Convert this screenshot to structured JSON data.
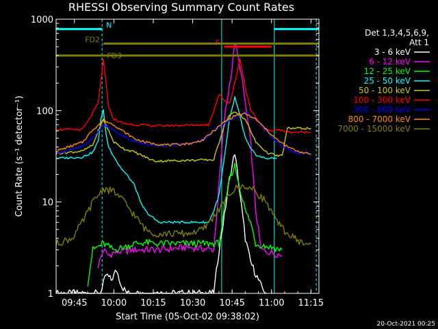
{
  "chart_data": {
    "type": "line",
    "title": "RHESSI Observing Summary Count Rates",
    "xlabel": "Start Time (05-Oct-02 09:38:02)",
    "ylabel": "Count Rate (s⁻¹ detector⁻¹)",
    "x_unit": "minutes since 09:38:02",
    "xlim": [
      0,
      100
    ],
    "ylim": [
      1,
      1000
    ],
    "yscale": "log",
    "grid": false,
    "x_ticks": [
      {
        "value": 6.97,
        "label": "09:45"
      },
      {
        "value": 21.97,
        "label": "10:00"
      },
      {
        "value": 36.97,
        "label": "10:15"
      },
      {
        "value": 51.97,
        "label": "10:30"
      },
      {
        "value": 66.97,
        "label": "10:45"
      },
      {
        "value": 81.97,
        "label": "11:00"
      },
      {
        "value": 96.97,
        "label": "11:15"
      }
    ],
    "y_ticks": [
      {
        "value": 1,
        "label": "1"
      },
      {
        "value": 10,
        "label": "10"
      },
      {
        "value": 100,
        "label": "100"
      },
      {
        "value": 1000,
        "label": "1000"
      }
    ],
    "legend": {
      "placement": "right",
      "header": [
        "Det 1,3,4,5,6,9,",
        "Att 1"
      ]
    },
    "series": [
      {
        "name": "3 - 6 keV",
        "color": "#ffffff",
        "points": [
          [
            0,
            1
          ],
          [
            17,
            1
          ],
          [
            19,
            1.6
          ],
          [
            21,
            1.4
          ],
          [
            23,
            1.8
          ],
          [
            25,
            1.2
          ],
          [
            27,
            1
          ],
          [
            60,
            1
          ],
          [
            62,
            3
          ],
          [
            64,
            7
          ],
          [
            66,
            18
          ],
          [
            68,
            35
          ],
          [
            70,
            12
          ],
          [
            72,
            4
          ],
          [
            74,
            2.2
          ],
          [
            78,
            1.2
          ],
          [
            80,
            1
          ]
        ]
      },
      {
        "name": "6 - 12 keV",
        "color": "#ff00ff",
        "points": [
          [
            16,
            2
          ],
          [
            18,
            3
          ],
          [
            20,
            2.6
          ],
          [
            22,
            2.8
          ],
          [
            30,
            3
          ],
          [
            40,
            3
          ],
          [
            50,
            3.2
          ],
          [
            60,
            3
          ],
          [
            64,
            80
          ],
          [
            67,
            300
          ],
          [
            68,
            560
          ],
          [
            70,
            300
          ],
          [
            72,
            120
          ],
          [
            74,
            45
          ],
          [
            76,
            8
          ],
          [
            78,
            3
          ],
          [
            86,
            2.6
          ]
        ]
      },
      {
        "name": "12 - 25 keV",
        "color": "#00ff00",
        "points": [
          [
            12,
            1.3
          ],
          [
            14,
            3
          ],
          [
            18,
            3.5
          ],
          [
            22,
            3
          ],
          [
            26,
            3.2
          ],
          [
            30,
            3.5
          ],
          [
            34,
            3.6
          ],
          [
            38,
            3.5
          ],
          [
            62,
            3.5
          ],
          [
            66,
            18
          ],
          [
            68,
            25
          ],
          [
            70,
            14
          ],
          [
            72,
            8
          ],
          [
            74,
            6
          ],
          [
            76,
            3.5
          ],
          [
            86,
            3
          ]
        ]
      },
      {
        "name": "25 - 50 keV",
        "color": "#00ffff",
        "points": [
          [
            0,
            30
          ],
          [
            10,
            31
          ],
          [
            14,
            35
          ],
          [
            16,
            46
          ],
          [
            17,
            80
          ],
          [
            18,
            100
          ],
          [
            19,
            55
          ],
          [
            20,
            40
          ],
          [
            24,
            25
          ],
          [
            28,
            18
          ],
          [
            30,
            15
          ],
          [
            32,
            10
          ],
          [
            34,
            8
          ],
          [
            36,
            7
          ],
          [
            39,
            6
          ],
          [
            58,
            6
          ],
          [
            60,
            8
          ],
          [
            62,
            12
          ],
          [
            64,
            30
          ],
          [
            66,
            80
          ],
          [
            68,
            140
          ],
          [
            70,
            85
          ],
          [
            72,
            50
          ],
          [
            74,
            38
          ],
          [
            76,
            33
          ],
          [
            78,
            31
          ],
          [
            80,
            30
          ],
          [
            84,
            30
          ]
        ]
      },
      {
        "name": "50 - 100 keV",
        "color": "#cccc00",
        "points": [
          [
            0,
            34
          ],
          [
            10,
            36
          ],
          [
            14,
            42
          ],
          [
            16,
            60
          ],
          [
            18,
            80
          ],
          [
            20,
            60
          ],
          [
            22,
            45
          ],
          [
            26,
            38
          ],
          [
            30,
            35
          ],
          [
            34,
            31
          ],
          [
            36,
            29
          ],
          [
            38,
            28
          ],
          [
            60,
            29
          ],
          [
            62,
            45
          ],
          [
            64,
            70
          ],
          [
            66,
            90
          ],
          [
            68,
            95
          ],
          [
            70,
            90
          ],
          [
            72,
            80
          ],
          [
            74,
            60
          ],
          [
            76,
            45
          ],
          [
            78,
            40
          ],
          [
            80,
            35
          ],
          [
            84,
            32
          ],
          [
            86,
            32
          ],
          [
            88,
            64
          ],
          [
            97,
            64
          ]
        ]
      },
      {
        "name": "100 - 300 keV",
        "color": "#ff0000",
        "points": [
          [
            0,
            62
          ],
          [
            10,
            62
          ],
          [
            12,
            75
          ],
          [
            16,
            120
          ],
          [
            18,
            360
          ],
          [
            20,
            110
          ],
          [
            22,
            80
          ],
          [
            26,
            72
          ],
          [
            30,
            70
          ],
          [
            34,
            69
          ],
          [
            38,
            68
          ],
          [
            58,
            70
          ],
          [
            60,
            100
          ],
          [
            62,
            150
          ],
          [
            64,
            130
          ],
          [
            66,
            120
          ],
          [
            68,
            200
          ],
          [
            70,
            370
          ],
          [
            72,
            180
          ],
          [
            74,
            100
          ],
          [
            78,
            70
          ],
          [
            80,
            60
          ],
          [
            84,
            62
          ],
          [
            86,
            60
          ],
          [
            88,
            58
          ],
          [
            97,
            58
          ]
        ]
      },
      {
        "name": "300 - 800 keV",
        "color": "#0000ff",
        "points": [
          [
            0,
            34
          ],
          [
            10,
            40
          ],
          [
            14,
            50
          ],
          [
            18,
            70
          ],
          [
            20,
            66
          ],
          [
            24,
            55
          ],
          [
            28,
            48
          ],
          [
            32,
            44
          ],
          [
            36,
            42
          ],
          [
            44,
            42
          ],
          [
            52,
            44
          ],
          [
            56,
            48
          ],
          [
            60,
            60
          ],
          [
            64,
            72
          ],
          [
            68,
            85
          ],
          [
            72,
            95
          ],
          [
            76,
            80
          ],
          [
            80,
            60
          ],
          [
            84,
            45
          ],
          [
            88,
            38
          ],
          [
            92,
            34
          ],
          [
            97,
            34
          ]
        ]
      },
      {
        "name": "800 - 7000 keV",
        "color": "#ff8c00",
        "points": [
          [
            0,
            36
          ],
          [
            10,
            45
          ],
          [
            14,
            62
          ],
          [
            18,
            78
          ],
          [
            22,
            70
          ],
          [
            26,
            58
          ],
          [
            30,
            49
          ],
          [
            34,
            45
          ],
          [
            38,
            43
          ],
          [
            44,
            42
          ],
          [
            52,
            44
          ],
          [
            56,
            48
          ],
          [
            60,
            60
          ],
          [
            64,
            75
          ],
          [
            68,
            88
          ],
          [
            72,
            92
          ],
          [
            76,
            80
          ],
          [
            80,
            62
          ],
          [
            84,
            48
          ],
          [
            88,
            40
          ],
          [
            92,
            36
          ],
          [
            97,
            33
          ]
        ]
      },
      {
        "name": "7000 - 15000 keV",
        "color": "#808000",
        "points": [
          [
            0,
            3.5
          ],
          [
            6,
            4
          ],
          [
            10,
            6
          ],
          [
            14,
            10
          ],
          [
            18,
            14
          ],
          [
            22,
            13
          ],
          [
            26,
            10
          ],
          [
            30,
            7
          ],
          [
            34,
            5
          ],
          [
            38,
            4.5
          ],
          [
            44,
            4.5
          ],
          [
            50,
            4.5
          ],
          [
            56,
            5
          ],
          [
            60,
            7
          ],
          [
            64,
            10
          ],
          [
            68,
            14
          ],
          [
            72,
            15
          ],
          [
            76,
            13
          ],
          [
            80,
            10
          ],
          [
            84,
            6
          ],
          [
            88,
            4.5
          ],
          [
            94,
            3.5
          ],
          [
            97,
            3.5
          ]
        ]
      }
    ],
    "state_bars": [
      {
        "label": "N",
        "color": "#00ffff",
        "y": 780,
        "segments": [
          [
            0,
            17.5
          ],
          [
            83,
            100
          ]
        ]
      },
      {
        "label": "F",
        "color": "#ff0000",
        "y": 500,
        "segments": [
          [
            64,
            82
          ]
        ]
      },
      {
        "label": "FD2",
        "color": "#808000",
        "y": 540,
        "segments": [
          [
            18,
            100
          ]
        ]
      },
      {
        "label": "FD3",
        "color": "#808000",
        "y": 400,
        "segments": [
          [
            0,
            100
          ]
        ]
      }
    ],
    "markers": [
      {
        "x": 17.5,
        "color": "#00ffff",
        "style": "dashed"
      },
      {
        "x": 63,
        "color": "#00ffff",
        "style": "solid"
      },
      {
        "x": 83,
        "color": "#00ffff",
        "style": "solid"
      },
      {
        "x": 99,
        "color": "#00ffff",
        "style": "dashed"
      }
    ]
  },
  "footer": {
    "timestamp": "20-Oct-2021 00:25"
  }
}
